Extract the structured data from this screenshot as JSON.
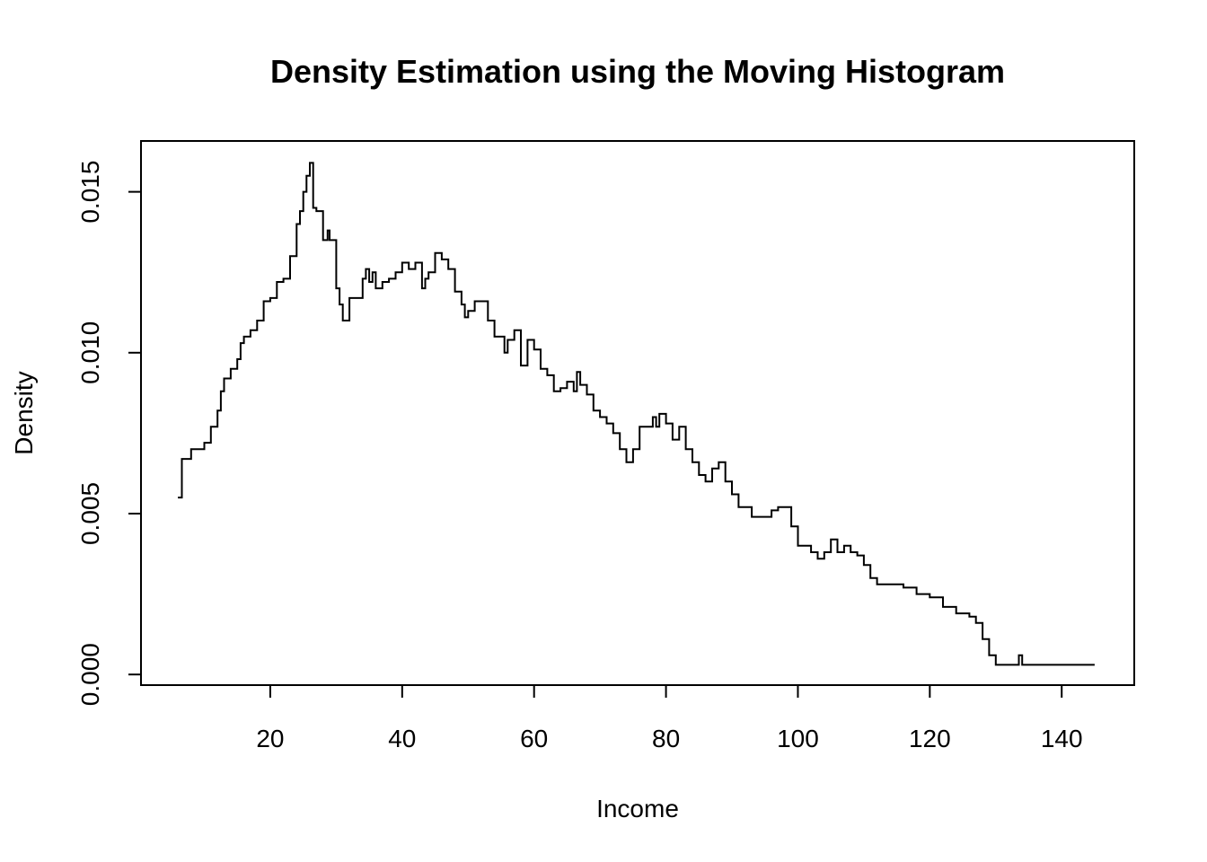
{
  "chart_data": {
    "type": "line",
    "title": "Density Estimation using the Moving Histogram",
    "xlabel": "Income",
    "ylabel": "Density",
    "xlim": [
      0.4,
      151.0
    ],
    "ylim": [
      -0.00033,
      0.01658
    ],
    "x_ticks": [
      20,
      40,
      60,
      80,
      100,
      120,
      140
    ],
    "x_tick_labels": [
      "20",
      "40",
      "60",
      "80",
      "100",
      "120",
      "140"
    ],
    "y_ticks": [
      0.0,
      0.005,
      0.01,
      0.015
    ],
    "y_tick_labels": [
      "0.000",
      "0.005",
      "0.010",
      "0.015"
    ],
    "grid": false,
    "legend": "none",
    "color": "#000000",
    "series": [
      {
        "x": [
          6.0,
          6.6,
          7.0,
          8.0,
          9.0,
          10.0,
          11.0,
          12.0,
          12.5,
          13.0,
          14.0,
          15.0,
          15.5,
          16.0,
          17.0,
          18.0,
          19.0,
          20.0,
          21.0,
          22.0,
          23.0,
          24.0,
          24.5,
          25.0,
          25.5,
          26.0,
          26.5,
          27.0,
          28.0,
          28.7,
          29.0,
          30.0,
          30.5,
          31.0,
          32.0,
          33.0,
          34.0,
          34.5,
          35.0,
          35.5,
          36.0,
          37.0,
          38.0,
          39.0,
          40.0,
          41.0,
          42.0,
          43.0,
          43.5,
          44.0,
          45.0,
          46.0,
          47.0,
          48.0,
          49.0,
          49.5,
          50.0,
          51.0,
          52.0,
          53.0,
          54.0,
          55.0,
          55.5,
          56.0,
          57.0,
          58.0,
          59.0,
          60.0,
          61.0,
          62.0,
          63.0,
          64.0,
          65.0,
          66.0,
          66.5,
          67.0,
          68.0,
          69.0,
          70.0,
          71.0,
          72.0,
          73.0,
          74.0,
          75.0,
          76.0,
          77.0,
          78.0,
          78.5,
          79.0,
          80.0,
          81.0,
          82.0,
          83.0,
          84.0,
          85.0,
          86.0,
          87.0,
          88.0,
          89.0,
          90.0,
          91.0,
          92.0,
          93.0,
          94.0,
          95.0,
          96.0,
          97.0,
          98.0,
          99.0,
          100.0,
          101.0,
          102.0,
          103.0,
          104.0,
          105.0,
          106.0,
          107.0,
          108.0,
          109.0,
          110.0,
          111.0,
          112.0,
          114.0,
          116.0,
          118.0,
          120.0,
          122.0,
          124.0,
          126.0,
          127.0,
          128.0,
          129.0,
          130.0,
          132.0,
          133.0,
          133.5,
          134.0,
          136.0,
          140.0,
          145.0
        ],
        "y": [
          0.0055,
          0.0067,
          0.0067,
          0.007,
          0.007,
          0.0072,
          0.0077,
          0.0082,
          0.0088,
          0.0092,
          0.0095,
          0.0098,
          0.0103,
          0.0105,
          0.0107,
          0.011,
          0.0116,
          0.0117,
          0.0122,
          0.0123,
          0.013,
          0.014,
          0.0144,
          0.015,
          0.0155,
          0.0159,
          0.0145,
          0.0144,
          0.0135,
          0.0138,
          0.0135,
          0.012,
          0.0115,
          0.011,
          0.0117,
          0.0117,
          0.0123,
          0.0126,
          0.0122,
          0.0125,
          0.012,
          0.0122,
          0.0123,
          0.0125,
          0.0128,
          0.0126,
          0.0128,
          0.012,
          0.0123,
          0.0125,
          0.0131,
          0.0129,
          0.0126,
          0.0119,
          0.0115,
          0.0111,
          0.0113,
          0.0116,
          0.0116,
          0.011,
          0.0105,
          0.0105,
          0.01,
          0.0104,
          0.0107,
          0.0096,
          0.0104,
          0.0101,
          0.0095,
          0.0093,
          0.0088,
          0.0089,
          0.0091,
          0.0088,
          0.0094,
          0.009,
          0.0087,
          0.0082,
          0.008,
          0.0078,
          0.0075,
          0.007,
          0.0066,
          0.007,
          0.0077,
          0.0077,
          0.008,
          0.0077,
          0.0081,
          0.0078,
          0.0073,
          0.0077,
          0.007,
          0.0066,
          0.0062,
          0.006,
          0.0064,
          0.0066,
          0.006,
          0.0056,
          0.0052,
          0.0052,
          0.0049,
          0.0049,
          0.0049,
          0.0051,
          0.0052,
          0.0052,
          0.0046,
          0.004,
          0.004,
          0.0038,
          0.0036,
          0.0038,
          0.0042,
          0.0038,
          0.004,
          0.0038,
          0.0037,
          0.0034,
          0.003,
          0.0028,
          0.0028,
          0.0027,
          0.0025,
          0.0024,
          0.0021,
          0.0019,
          0.0018,
          0.0016,
          0.0011,
          0.0006,
          0.0003,
          0.0003,
          0.0003,
          0.0006,
          0.0003,
          0.0003,
          0.0003,
          0.0003
        ]
      }
    ]
  }
}
